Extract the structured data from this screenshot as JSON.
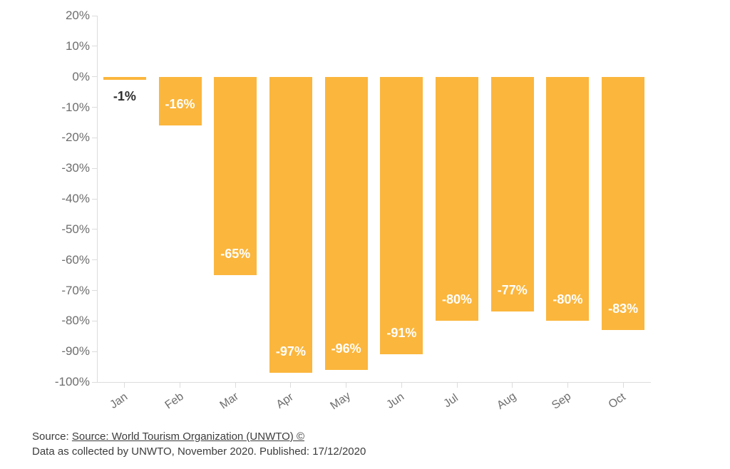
{
  "chart_data": {
    "type": "bar",
    "title": "",
    "xlabel": "",
    "ylabel": "",
    "categories": [
      "Jan",
      "Feb",
      "Mar",
      "Apr",
      "May",
      "Jun",
      "Jul",
      "Aug",
      "Sep",
      "Oct"
    ],
    "values": [
      -1,
      -16,
      -65,
      -97,
      -96,
      -91,
      -80,
      -77,
      -80,
      -83
    ],
    "bar_labels": [
      "-1%",
      "-16%",
      "-65%",
      "-97%",
      "-96%",
      "-91%",
      "-80%",
      "-77%",
      "-80%",
      "-83%"
    ],
    "y_tick_labels": [
      "20%",
      "10%",
      "0%",
      "-10%",
      "-20%",
      "-30%",
      "-40%",
      "-50%",
      "-60%",
      "-70%",
      "-80%",
      "-90%",
      "-100%"
    ],
    "y_tick_values": [
      20,
      10,
      0,
      -10,
      -20,
      -30,
      -40,
      -50,
      -60,
      -70,
      -80,
      -90,
      -100
    ],
    "ylim": [
      -100,
      20
    ],
    "grid": false,
    "legend": "none"
  },
  "colors": {
    "bar": "#fbb63d",
    "label_inside": "#ffffff",
    "label_outside": "#2e2e2e",
    "axis_line": "#dcdcdc",
    "tick_text": "#6e6e6e"
  },
  "source": {
    "prefix": "Source: ",
    "link_text": "Source: World Tourism Organization (UNWTO) ©",
    "line2": "Data as collected by UNWTO, November 2020. Published: 17/12/2020"
  }
}
